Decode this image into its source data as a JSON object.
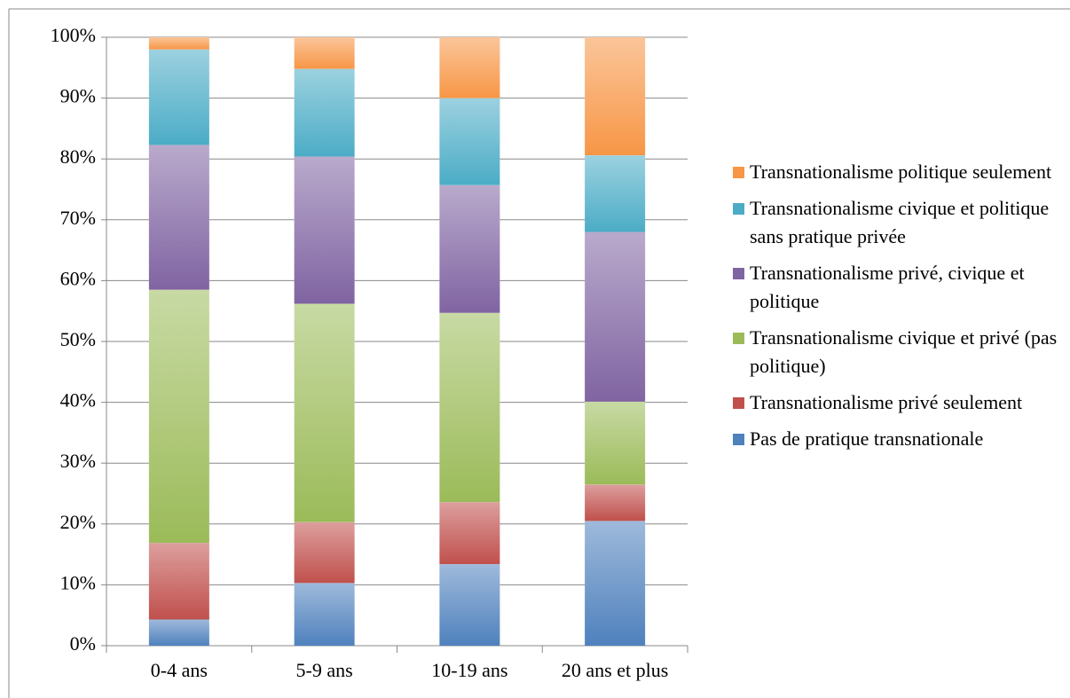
{
  "chart_data": {
    "type": "stacked_bar",
    "categories": [
      "0-4 ans",
      "5-9 ans",
      "10-19 ans",
      "20 ans et plus"
    ],
    "series": [
      {
        "name": "Pas de pratique transnationale",
        "color": "#4f81bd",
        "values": [
          4.3,
          10.3,
          13.4,
          20.5
        ]
      },
      {
        "name": "Transnationalisme privé seulement",
        "color": "#c0504d",
        "values": [
          12.6,
          10.0,
          10.2,
          6.0
        ]
      },
      {
        "name": "Transnationalisme civique et privé (pas politique)",
        "color": "#9bbb59",
        "values": [
          41.6,
          35.9,
          31.1,
          13.6
        ]
      },
      {
        "name": "Transnationalisme privé, civique et politique",
        "color": "#8064a2",
        "values": [
          23.8,
          24.2,
          21.0,
          27.9
        ]
      },
      {
        "name": "Transnationalisme civique et politique sans pratique privée",
        "color": "#4bacc6",
        "values": [
          15.7,
          14.4,
          14.3,
          12.6
        ]
      },
      {
        "name": "Transnationalisme politique seulement",
        "color": "#f79646",
        "values": [
          2.0,
          5.2,
          10.0,
          19.4
        ]
      }
    ],
    "ylim": [
      0,
      100
    ],
    "yticks": [
      {
        "value": 0,
        "label": "0%"
      },
      {
        "value": 10,
        "label": "10%"
      },
      {
        "value": 20,
        "label": "20%"
      },
      {
        "value": 30,
        "label": "30%"
      },
      {
        "value": 40,
        "label": "40%"
      },
      {
        "value": 50,
        "label": "50%"
      },
      {
        "value": 60,
        "label": "60%"
      },
      {
        "value": 70,
        "label": "70%"
      },
      {
        "value": 80,
        "label": "80%"
      },
      {
        "value": 90,
        "label": "90%"
      },
      {
        "value": 100,
        "label": "100%"
      }
    ],
    "grid": true,
    "legend": "right"
  }
}
